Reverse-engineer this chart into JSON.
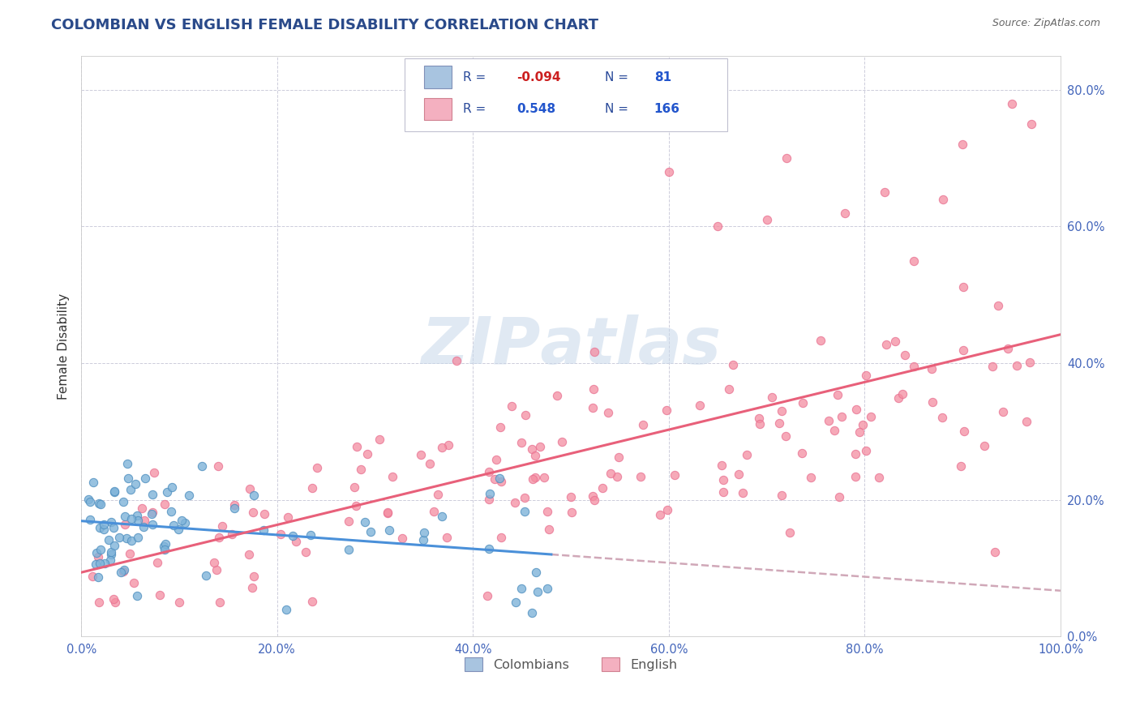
{
  "title": "COLOMBIAN VS ENGLISH FEMALE DISABILITY CORRELATION CHART",
  "source": "Source: ZipAtlas.com",
  "ylabel": "Female Disability",
  "legend_labels": [
    "Colombians",
    "English"
  ],
  "r_colombians": -0.094,
  "n_colombians": 81,
  "r_english": 0.548,
  "n_english": 166,
  "colombian_color": "#7fb3d9",
  "colombian_edge": "#5090c0",
  "english_color": "#f48ca0",
  "english_edge": "#e87090",
  "colombian_line_color": "#4a90d9",
  "english_line_color": "#e8607a",
  "dashed_line_color": "#d0a8b8",
  "background_color": "#ffffff",
  "grid_color": "#c8c8d8",
  "xlim": [
    0.0,
    1.0
  ],
  "ylim": [
    0.0,
    0.85
  ],
  "title_color": "#2a4a8a",
  "source_color": "#666666",
  "legend_text_color": "#2a4a9a",
  "legend_r_neg_color": "#cc2020",
  "legend_r_pos_color": "#2255cc",
  "legend_n_color": "#2255cc",
  "tick_color": "#4466bb",
  "watermark_color": "#c8d8ea",
  "col_scatter_seed": 42,
  "eng_scatter_seed": 7
}
